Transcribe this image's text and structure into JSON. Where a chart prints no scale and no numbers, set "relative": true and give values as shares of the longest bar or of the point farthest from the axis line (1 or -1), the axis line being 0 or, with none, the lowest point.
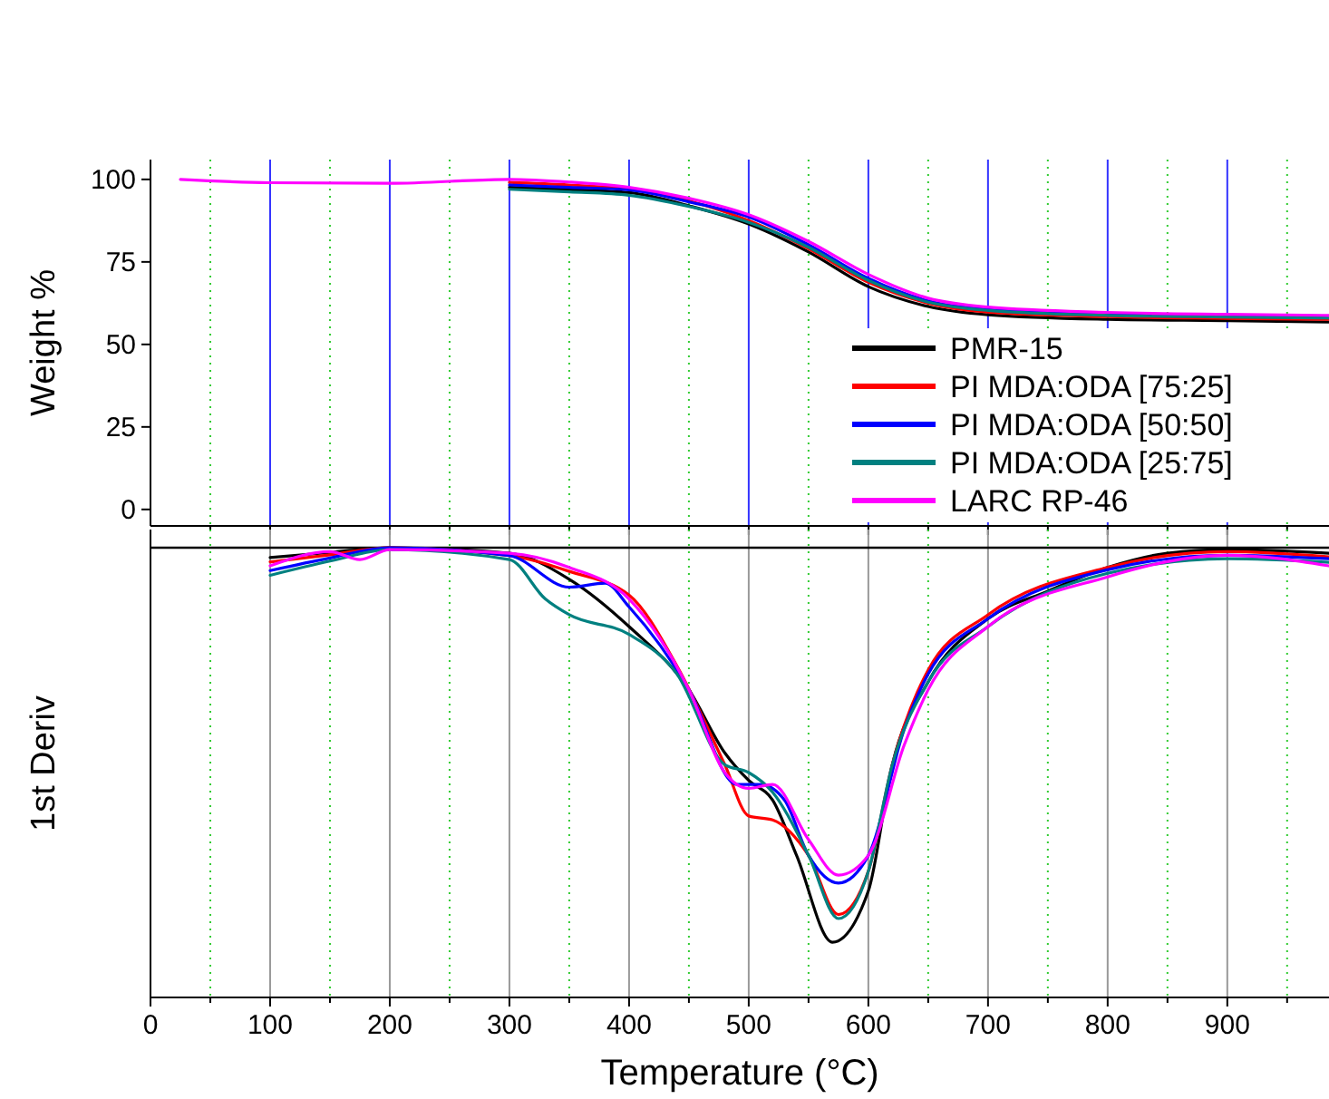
{
  "chart_data": [
    {
      "type": "line",
      "ylabel": "Weight %",
      "xlim": [
        0,
        985
      ],
      "ylim": [
        -5,
        106
      ],
      "yticks": [
        0,
        25,
        50,
        75,
        100
      ],
      "xticks": [
        {
          "value": 50,
          "label": null
        },
        100,
        {
          "value": 150,
          "label": null
        },
        200,
        {
          "value": 250,
          "label": null
        },
        300,
        {
          "value": 350,
          "label": null
        },
        400,
        {
          "value": 450,
          "label": null
        },
        500,
        {
          "value": 550,
          "label": null
        },
        600,
        {
          "value": 650,
          "label": null
        },
        700,
        {
          "value": 750,
          "label": null
        },
        800,
        {
          "value": 850,
          "label": null
        },
        900,
        {
          "value": 950,
          "label": null
        }
      ],
      "grid": "x",
      "tick_labels": "y",
      "legend": "bottom right",
      "line_style": "solid",
      "x": [
        25,
        100,
        200,
        300,
        350,
        400,
        450,
        500,
        550,
        600,
        650,
        700,
        800,
        900,
        985
      ],
      "series": [
        {
          "name": "PMR-15",
          "color": "#000000",
          "values": [
            null,
            null,
            null,
            97.6,
            96.9,
            96,
            92,
            86.5,
            78,
            67.5,
            61.5,
            59,
            57.6,
            57.2,
            56.8
          ]
        },
        {
          "name": "PI MDA:ODA [75:25]",
          "color": "#ff0000",
          "values": [
            null,
            null,
            null,
            99.1,
            98.3,
            97,
            93.5,
            87.5,
            79,
            68.8,
            62.5,
            59.8,
            58.4,
            57.9,
            57.6
          ]
        },
        {
          "name": "PI MDA:ODA [50:50]",
          "color": "#0000ff",
          "values": [
            null,
            null,
            null,
            98.3,
            97.6,
            96.8,
            93.2,
            88.6,
            80.2,
            70,
            63.2,
            60.6,
            59.2,
            58.6,
            58.4
          ]
        },
        {
          "name": "PI MDA:ODA [25:75]",
          "color": "#008080",
          "values": [
            null,
            null,
            null,
            97,
            96.2,
            95.2,
            91.8,
            87,
            79.4,
            69.4,
            62.8,
            60.3,
            58.8,
            58.3,
            58
          ]
        },
        {
          "name": "LARC RP-46",
          "color": "#ff00ff",
          "values": [
            100,
            99,
            98.8,
            100,
            99.2,
            97.6,
            94.3,
            89.3,
            81.2,
            71.2,
            64,
            61.3,
            59.7,
            59.1,
            58.8
          ]
        }
      ]
    },
    {
      "type": "line",
      "ylabel": "1st Deriv",
      "xlabel": "Temperature (°C)",
      "relative": true,
      "xlim": [
        0,
        985
      ],
      "xticks": [
        0,
        {
          "value": 50,
          "label": null
        },
        100,
        {
          "value": 150,
          "label": null
        },
        200,
        {
          "value": 250,
          "label": null
        },
        300,
        {
          "value": 350,
          "label": null
        },
        400,
        {
          "value": 450,
          "label": null
        },
        500,
        {
          "value": 550,
          "label": null
        },
        600,
        {
          "value": 650,
          "label": null
        },
        700,
        {
          "value": 750,
          "label": null
        },
        800,
        {
          "value": 850,
          "label": null
        },
        900,
        {
          "value": 950,
          "label": null
        }
      ],
      "grid": "x",
      "tick_labels": "x",
      "line_style": "solid",
      "series": [
        {
          "color": "#000000",
          "x": [
            100,
            150,
            200,
            300,
            350,
            400,
            450,
            480,
            500,
            520,
            540,
            570,
            600,
            620,
            650,
            700,
            750,
            800,
            850,
            900,
            985
          ],
          "values": [
            -0.025,
            -0.012,
            0,
            -0.014,
            -0.08,
            -0.2,
            -0.36,
            -0.52,
            -0.59,
            -0.64,
            -0.78,
            -1,
            -0.87,
            -0.55,
            -0.34,
            -0.18,
            -0.11,
            -0.05,
            -0.014,
            -0.005,
            -0.014
          ]
        },
        {
          "color": "#ff0000",
          "x": [
            100,
            150,
            200,
            300,
            350,
            400,
            440,
            480,
            500,
            520,
            550,
            575,
            600,
            620,
            650,
            700,
            800,
            900,
            985
          ],
          "values": [
            -0.036,
            -0.018,
            0,
            -0.02,
            -0.06,
            -0.12,
            -0.3,
            -0.55,
            -0.68,
            -0.69,
            -0.78,
            -0.93,
            -0.82,
            -0.55,
            -0.31,
            -0.17,
            -0.05,
            -0.01,
            -0.023
          ]
        },
        {
          "color": "#0000ff",
          "x": [
            100,
            150,
            200,
            300,
            350,
            380,
            400,
            450,
            490,
            510,
            530,
            550,
            575,
            600,
            630,
            650,
            700,
            800,
            900,
            985
          ],
          "values": [
            -0.058,
            -0.026,
            0,
            -0.02,
            -0.1,
            -0.09,
            -0.15,
            -0.36,
            -0.6,
            -0.6,
            -0.64,
            -0.78,
            -0.85,
            -0.78,
            -0.46,
            -0.32,
            -0.18,
            -0.056,
            -0.019,
            -0.028
          ]
        },
        {
          "color": "#008080",
          "x": [
            100,
            150,
            200,
            300,
            330,
            350,
            400,
            440,
            480,
            500,
            520,
            550,
            575,
            600,
            620,
            650,
            700,
            800,
            900,
            985
          ],
          "values": [
            -0.07,
            -0.034,
            -0.005,
            -0.03,
            -0.13,
            -0.17,
            -0.22,
            -0.32,
            -0.55,
            -0.57,
            -0.62,
            -0.78,
            -0.94,
            -0.82,
            -0.55,
            -0.34,
            -0.2,
            -0.065,
            -0.028,
            -0.037
          ]
        },
        {
          "color": "#ff00ff",
          "x": [
            100,
            150,
            175,
            200,
            300,
            350,
            400,
            450,
            480,
            500,
            520,
            550,
            575,
            600,
            630,
            650,
            700,
            800,
            900,
            985
          ],
          "values": [
            -0.046,
            -0.01,
            -0.03,
            -0.005,
            -0.014,
            -0.05,
            -0.13,
            -0.36,
            -0.57,
            -0.61,
            -0.6,
            -0.74,
            -0.83,
            -0.78,
            -0.5,
            -0.36,
            -0.2,
            -0.074,
            -0.019,
            -0.046
          ]
        }
      ]
    }
  ]
}
